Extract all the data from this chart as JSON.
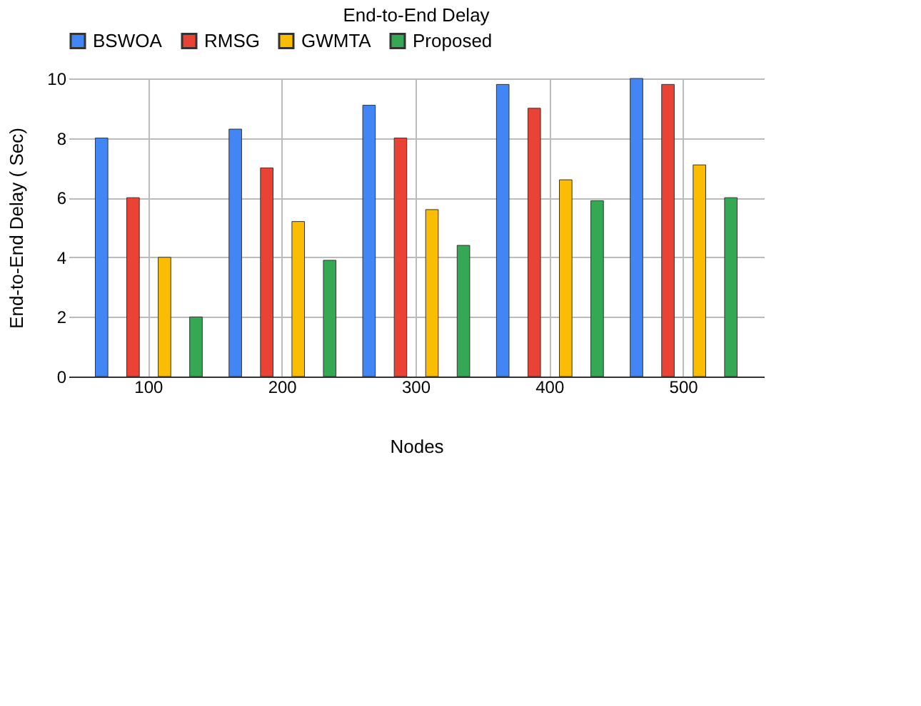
{
  "chart_data": {
    "type": "bar",
    "title": "End-to-End Delay",
    "xlabel": "Nodes",
    "ylabel": "End-to-End Delay ( Sec)",
    "categories": [
      "100",
      "200",
      "300",
      "400",
      "500"
    ],
    "series": [
      {
        "name": "BSWOA",
        "color": "#4285f4",
        "values": [
          8,
          8.3,
          9.1,
          9.8,
          10
        ]
      },
      {
        "name": "RMSG",
        "color": "#ea4335",
        "values": [
          6,
          7,
          8,
          9,
          9.8
        ]
      },
      {
        "name": "GWMTA",
        "color": "#fbbc04",
        "values": [
          4,
          5.2,
          5.6,
          6.6,
          7.1
        ]
      },
      {
        "name": "Proposed",
        "color": "#34a853",
        "values": [
          2,
          3.9,
          4.4,
          5.9,
          6
        ]
      }
    ],
    "ylim": [
      0,
      10
    ],
    "yticks": [
      0,
      2,
      4,
      6,
      8,
      10
    ],
    "grid": true,
    "legend": "top"
  }
}
